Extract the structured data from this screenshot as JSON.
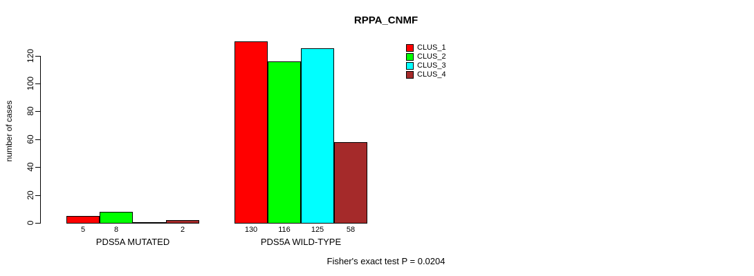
{
  "title": "RPPA_CNMF",
  "footnote": "Fisher's exact test P = 0.0204",
  "chart_data": {
    "type": "bar",
    "title": "RPPA_CNMF",
    "xlabel": "",
    "ylabel": "number of cases",
    "categories": [
      "PDS5A MUTATED",
      "PDS5A WILD-TYPE"
    ],
    "series": [
      {
        "name": "CLUS_1",
        "color": "#FF0000",
        "values": [
          5,
          130
        ]
      },
      {
        "name": "CLUS_2",
        "color": "#00FF00",
        "values": [
          8,
          116
        ]
      },
      {
        "name": "CLUS_3",
        "color": "#00FFFF",
        "values": [
          0,
          125
        ]
      },
      {
        "name": "CLUS_4",
        "color": "#A52A2A",
        "values": [
          2,
          58
        ]
      }
    ],
    "bar_value_labels": [
      [
        "5",
        "8",
        "",
        "2"
      ],
      [
        "130",
        "116",
        "125",
        "58"
      ]
    ],
    "ylim": [
      0,
      130
    ],
    "yticks": [
      0,
      20,
      40,
      60,
      80,
      100,
      120
    ],
    "grid": false,
    "legend_position": "right",
    "annotation": "Fisher's exact test P = 0.0204",
    "axis_color": "#000000",
    "bar_border_color": "#000000"
  }
}
